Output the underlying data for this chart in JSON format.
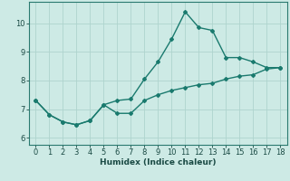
{
  "line1_x": [
    0,
    1,
    2,
    3,
    4,
    5,
    6,
    7,
    8,
    9,
    10,
    11,
    12,
    13,
    14,
    15,
    16,
    17,
    18
  ],
  "line1_y": [
    7.3,
    6.8,
    6.55,
    6.45,
    6.6,
    7.15,
    7.3,
    7.35,
    8.05,
    8.65,
    9.45,
    10.4,
    9.85,
    9.75,
    8.8,
    8.8,
    8.65,
    8.45,
    8.45
  ],
  "line2_x": [
    0,
    1,
    2,
    3,
    4,
    5,
    6,
    7,
    8,
    9,
    10,
    11,
    12,
    13,
    14,
    15,
    16,
    17,
    18
  ],
  "line2_y": [
    7.3,
    6.8,
    6.55,
    6.45,
    6.6,
    7.15,
    6.85,
    6.85,
    7.3,
    7.5,
    7.65,
    7.75,
    7.85,
    7.9,
    8.05,
    8.15,
    8.2,
    8.4,
    8.45
  ],
  "line_color": "#1a7a6e",
  "bg_color": "#cdeae5",
  "grid_color": "#afd4ce",
  "xlabel": "Humidex (Indice chaleur)",
  "xlim": [
    -0.5,
    18.5
  ],
  "ylim": [
    5.75,
    10.75
  ],
  "yticks": [
    6,
    7,
    8,
    9,
    10
  ],
  "xticks": [
    0,
    1,
    2,
    3,
    4,
    5,
    6,
    7,
    8,
    9,
    10,
    11,
    12,
    13,
    14,
    15,
    16,
    17,
    18
  ],
  "marker": "D",
  "markersize": 2.0,
  "linewidth": 1.0,
  "tick_fontsize": 6.0,
  "xlabel_fontsize": 6.5
}
